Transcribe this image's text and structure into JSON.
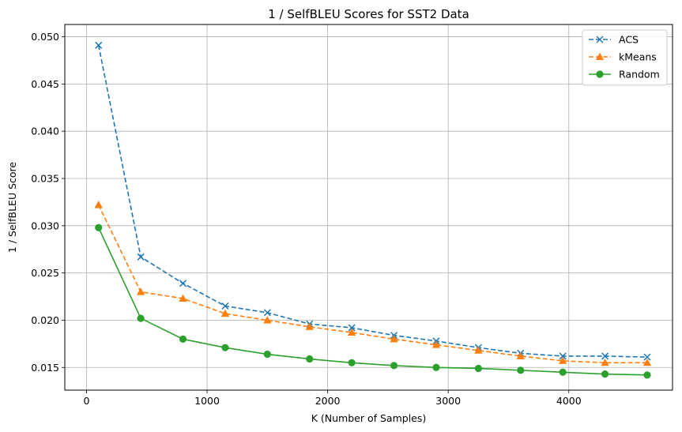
{
  "chart_data": {
    "type": "line",
    "title": "1 / SelfBLEU Scores for SST2 Data",
    "xlabel": "K (Number of Samples)",
    "ylabel": "1 / SelfBLEU Score",
    "xlim": [
      -180,
      4860
    ],
    "ylim": [
      0.0126,
      0.0513
    ],
    "x_ticks": [
      0,
      1000,
      2000,
      3000,
      4000
    ],
    "x_tick_labels": [
      "0",
      "1000",
      "2000",
      "3000",
      "4000"
    ],
    "y_ticks": [
      0.015,
      0.02,
      0.025,
      0.03,
      0.035,
      0.04,
      0.045,
      0.05
    ],
    "y_tick_labels": [
      "0.015",
      "0.020",
      "0.025",
      "0.030",
      "0.035",
      "0.040",
      "0.045",
      "0.050"
    ],
    "grid": true,
    "legend_position": "top-right",
    "x": [
      100,
      450,
      800,
      1150,
      1500,
      1850,
      2200,
      2550,
      2900,
      3250,
      3600,
      3950,
      4300,
      4650
    ],
    "series": [
      {
        "name": "ACS",
        "color": "#1f77b4",
        "line_style": "dashed",
        "marker": "x",
        "values": [
          0.0491,
          0.0267,
          0.0239,
          0.0215,
          0.0208,
          0.0196,
          0.0192,
          0.0184,
          0.0178,
          0.0171,
          0.0165,
          0.0162,
          0.0162,
          0.0161
        ]
      },
      {
        "name": "kMeans",
        "color": "#ff7f0e",
        "line_style": "dashed",
        "marker": "triangle",
        "values": [
          0.0322,
          0.023,
          0.0223,
          0.0207,
          0.02,
          0.0193,
          0.0187,
          0.018,
          0.0174,
          0.0168,
          0.0162,
          0.0157,
          0.0155,
          0.0155
        ]
      },
      {
        "name": "Random",
        "color": "#2ca02c",
        "line_style": "solid",
        "marker": "circle",
        "values": [
          0.0298,
          0.0202,
          0.018,
          0.0171,
          0.0164,
          0.0159,
          0.0155,
          0.0152,
          0.015,
          0.0149,
          0.0147,
          0.0145,
          0.0143,
          0.0142
        ]
      }
    ]
  }
}
